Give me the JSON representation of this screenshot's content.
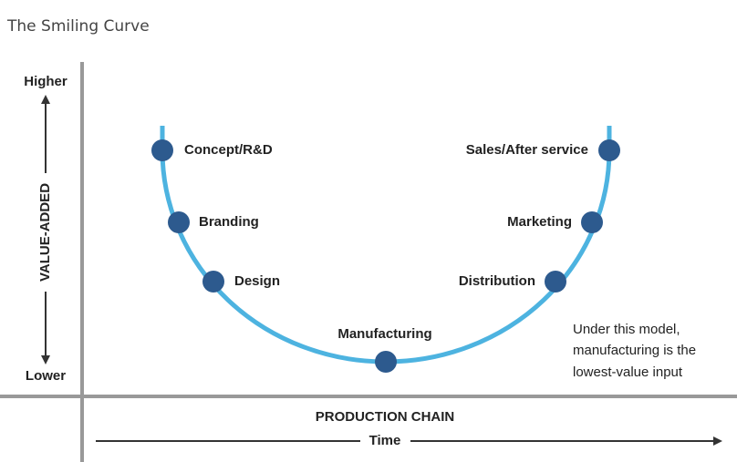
{
  "title": "The Smiling Curve",
  "y_axis": {
    "label": "VALUE-ADDED",
    "top": "Higher",
    "bottom": "Lower"
  },
  "x_axis": {
    "label": "PRODUCTION CHAIN",
    "sublabel": "Time"
  },
  "nodes": [
    {
      "label": "Concept/R&D"
    },
    {
      "label": "Branding"
    },
    {
      "label": "Design"
    },
    {
      "label": "Manufacturing"
    },
    {
      "label": "Distribution"
    },
    {
      "label": "Marketing"
    },
    {
      "label": "Sales/After service"
    }
  ],
  "note": [
    "Under this model,",
    "manufacturing is the",
    "lowest-value input"
  ]
}
